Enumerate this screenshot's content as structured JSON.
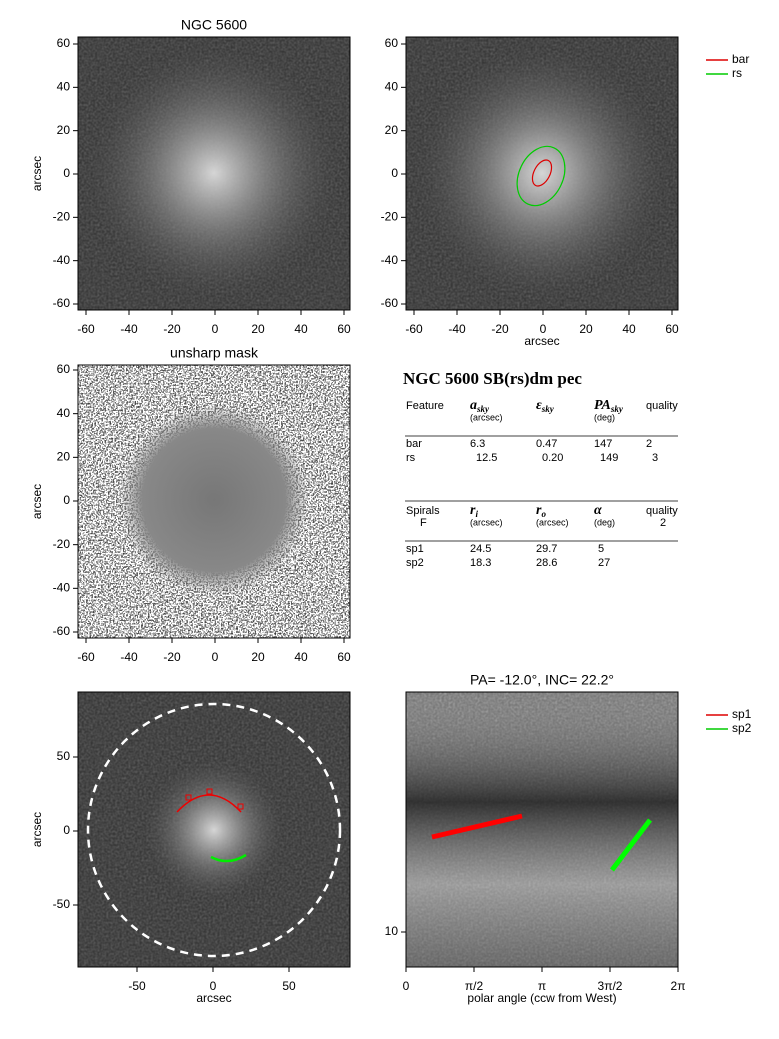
{
  "figure": {
    "panels": [
      {
        "title": "NGC 5600",
        "ylabel": "arcsec",
        "xticks": [
          "-60",
          "-40",
          "-20",
          "0",
          "20",
          "40",
          "60"
        ],
        "yticks": [
          "60",
          "40",
          "20",
          "0",
          "-20",
          "-40",
          "-60"
        ]
      },
      {
        "xlabel": "arcsec",
        "xticks": [
          "-60",
          "-40",
          "-20",
          "0",
          "20",
          "40",
          "60"
        ],
        "yticks": [
          "60",
          "40",
          "20",
          "0",
          "-20",
          "-40",
          "-60"
        ],
        "legend": [
          "bar",
          "rs"
        ]
      },
      {
        "title": "unsharp mask",
        "ylabel": "arcsec",
        "xticks": [
          "-60",
          "-40",
          "-20",
          "0",
          "20",
          "40",
          "60"
        ],
        "yticks": [
          "60",
          "40",
          "20",
          "0",
          "-20",
          "-40",
          "-60"
        ]
      },
      {
        "ylabel": "arcsec",
        "xlabel": "arcsec",
        "xticks": [
          "-50",
          "0",
          "50"
        ],
        "yticks": [
          "50",
          "0",
          "-50"
        ]
      },
      {
        "title": "PA= -12.0°, INC= 22.2°",
        "xlabel": "polar angle (ccw from West)",
        "xticks": [
          "0",
          "π/2",
          "π",
          "3π/2",
          "2π"
        ],
        "yticks": [
          "10"
        ],
        "legend": [
          "sp1",
          "sp2"
        ]
      }
    ],
    "table": {
      "title": "NGC 5600  SB(rs)dm pec",
      "features": {
        "header": [
          {
            "name": "Feature"
          },
          {
            "name": "a",
            "sub": "sky",
            "unit": "(arcsec)"
          },
          {
            "name": "ε",
            "sub": "sky"
          },
          {
            "name": "PA",
            "sub": "sky",
            "unit": "(deg)"
          },
          {
            "name": "quality"
          }
        ],
        "rows": [
          [
            "bar",
            "6.3",
            "0.47",
            "147",
            "2"
          ],
          [
            "rs",
            "12.5",
            "0.20",
            "149",
            "3"
          ]
        ]
      },
      "spirals": {
        "header": [
          {
            "name": "Spirals",
            "unit": "F"
          },
          {
            "name": "r",
            "sub": "i",
            "unit": "(arcsec)"
          },
          {
            "name": "r",
            "sub": "o",
            "unit": "(arcsec)"
          },
          {
            "name": "α",
            "unit": "(deg)"
          },
          {
            "name": "quality",
            "unit": "2"
          }
        ],
        "rows": [
          [
            "sp1",
            "24.5",
            "29.7",
            "5"
          ],
          [
            "sp2",
            "18.3",
            "28.6",
            "27"
          ]
        ]
      }
    }
  }
}
